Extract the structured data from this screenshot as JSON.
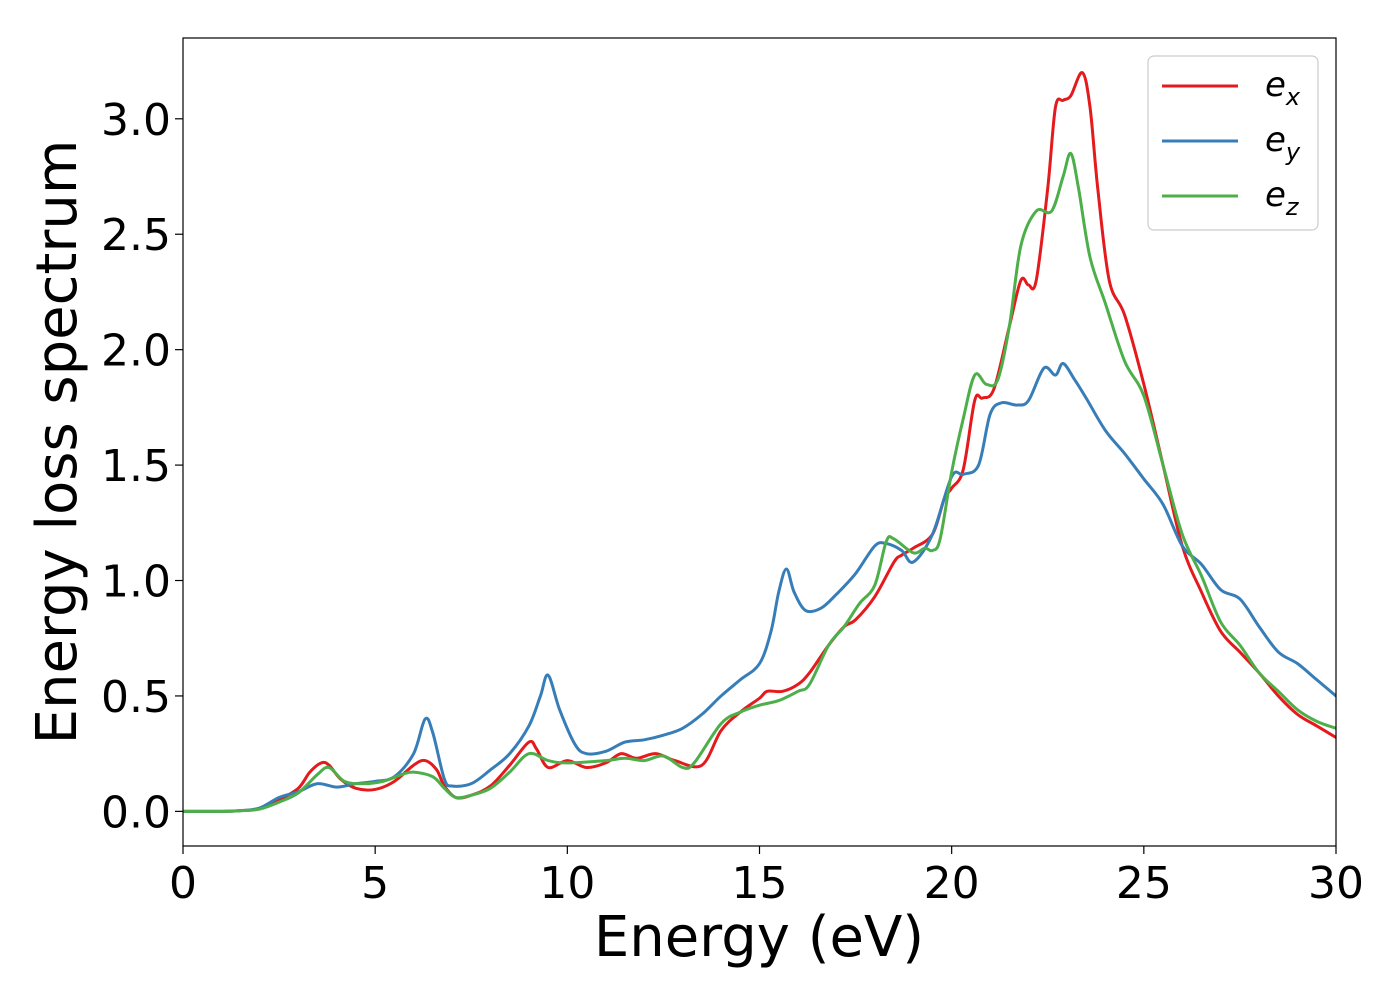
{
  "chart_data": {
    "type": "line",
    "xlabel": "Energy (eV)",
    "ylabel": "Energy loss spectrum",
    "xlim": [
      0,
      30
    ],
    "ylim": [
      -0.15,
      3.35
    ],
    "xticks": [
      0,
      5,
      10,
      15,
      20,
      25,
      30
    ],
    "yticks": [
      0.0,
      0.5,
      1.0,
      1.5,
      2.0,
      2.5,
      3.0
    ],
    "xtick_labels": [
      "0",
      "5",
      "10",
      "15",
      "20",
      "25",
      "30"
    ],
    "ytick_labels": [
      "0.0",
      "0.5",
      "1.0",
      "1.5",
      "2.0",
      "2.5",
      "3.0"
    ],
    "grid": false,
    "legend_position": "top-right",
    "series": [
      {
        "name": "e",
        "sub": "x",
        "color": "#e41a1c",
        "points": [
          [
            0,
            0
          ],
          [
            1,
            0
          ],
          [
            1.5,
            0.003
          ],
          [
            2,
            0.012
          ],
          [
            2.5,
            0.05
          ],
          [
            3,
            0.1
          ],
          [
            3.3,
            0.17
          ],
          [
            3.6,
            0.21
          ],
          [
            3.8,
            0.2
          ],
          [
            4.1,
            0.14
          ],
          [
            4.5,
            0.1
          ],
          [
            5,
            0.095
          ],
          [
            5.5,
            0.13
          ],
          [
            6,
            0.2
          ],
          [
            6.3,
            0.22
          ],
          [
            6.6,
            0.18
          ],
          [
            6.8,
            0.11
          ],
          [
            7.1,
            0.06
          ],
          [
            7.5,
            0.07
          ],
          [
            8,
            0.11
          ],
          [
            8.5,
            0.2
          ],
          [
            9,
            0.3
          ],
          [
            9.2,
            0.27
          ],
          [
            9.5,
            0.19
          ],
          [
            10,
            0.22
          ],
          [
            10.5,
            0.19
          ],
          [
            11,
            0.21
          ],
          [
            11.4,
            0.25
          ],
          [
            11.8,
            0.23
          ],
          [
            12.3,
            0.25
          ],
          [
            12.8,
            0.22
          ],
          [
            13.5,
            0.2
          ],
          [
            14,
            0.35
          ],
          [
            14.5,
            0.43
          ],
          [
            15,
            0.49
          ],
          [
            15.2,
            0.52
          ],
          [
            15.6,
            0.52
          ],
          [
            16,
            0.55
          ],
          [
            16.3,
            0.6
          ],
          [
            16.8,
            0.72
          ],
          [
            17.2,
            0.8
          ],
          [
            17.5,
            0.83
          ],
          [
            18,
            0.93
          ],
          [
            18.5,
            1.08
          ],
          [
            18.7,
            1.11
          ],
          [
            19,
            1.14
          ],
          [
            19.5,
            1.2
          ],
          [
            19.8,
            1.35
          ],
          [
            20,
            1.4
          ],
          [
            20.3,
            1.48
          ],
          [
            20.6,
            1.78
          ],
          [
            20.8,
            1.79
          ],
          [
            21.1,
            1.83
          ],
          [
            21.5,
            2.1
          ],
          [
            21.8,
            2.3
          ],
          [
            22,
            2.28
          ],
          [
            22.2,
            2.3
          ],
          [
            22.5,
            2.7
          ],
          [
            22.7,
            3.05
          ],
          [
            22.9,
            3.08
          ],
          [
            23.1,
            3.1
          ],
          [
            23.4,
            3.2
          ],
          [
            23.6,
            3.05
          ],
          [
            23.8,
            2.7
          ],
          [
            24.1,
            2.3
          ],
          [
            24.5,
            2.15
          ],
          [
            25,
            1.85
          ],
          [
            25.5,
            1.5
          ],
          [
            26,
            1.15
          ],
          [
            26.5,
            0.95
          ],
          [
            27,
            0.78
          ],
          [
            27.5,
            0.69
          ],
          [
            28,
            0.6
          ],
          [
            28.5,
            0.5
          ],
          [
            29,
            0.42
          ],
          [
            29.5,
            0.37
          ],
          [
            30,
            0.32
          ]
        ]
      },
      {
        "name": "e",
        "sub": "y",
        "color": "#377eb8",
        "points": [
          [
            0,
            0
          ],
          [
            1,
            0
          ],
          [
            1.5,
            0.003
          ],
          [
            2,
            0.015
          ],
          [
            2.5,
            0.06
          ],
          [
            3,
            0.085
          ],
          [
            3.5,
            0.12
          ],
          [
            4,
            0.105
          ],
          [
            4.5,
            0.12
          ],
          [
            5,
            0.13
          ],
          [
            5.5,
            0.15
          ],
          [
            6,
            0.25
          ],
          [
            6.3,
            0.4
          ],
          [
            6.5,
            0.34
          ],
          [
            6.8,
            0.14
          ],
          [
            7,
            0.11
          ],
          [
            7.5,
            0.12
          ],
          [
            8,
            0.18
          ],
          [
            8.5,
            0.25
          ],
          [
            9,
            0.37
          ],
          [
            9.3,
            0.5
          ],
          [
            9.5,
            0.59
          ],
          [
            9.8,
            0.44
          ],
          [
            10.2,
            0.29
          ],
          [
            10.5,
            0.25
          ],
          [
            11,
            0.26
          ],
          [
            11.5,
            0.3
          ],
          [
            12,
            0.31
          ],
          [
            12.5,
            0.33
          ],
          [
            13,
            0.36
          ],
          [
            13.5,
            0.42
          ],
          [
            14,
            0.5
          ],
          [
            14.5,
            0.57
          ],
          [
            15,
            0.64
          ],
          [
            15.3,
            0.78
          ],
          [
            15.5,
            0.95
          ],
          [
            15.7,
            1.05
          ],
          [
            15.9,
            0.95
          ],
          [
            16.2,
            0.87
          ],
          [
            16.6,
            0.88
          ],
          [
            17,
            0.94
          ],
          [
            17.5,
            1.03
          ],
          [
            18,
            1.15
          ],
          [
            18.3,
            1.16
          ],
          [
            18.7,
            1.13
          ],
          [
            19,
            1.08
          ],
          [
            19.5,
            1.2
          ],
          [
            20,
            1.45
          ],
          [
            20.3,
            1.46
          ],
          [
            20.7,
            1.5
          ],
          [
            21,
            1.72
          ],
          [
            21.3,
            1.77
          ],
          [
            21.7,
            1.76
          ],
          [
            22,
            1.78
          ],
          [
            22.4,
            1.92
          ],
          [
            22.7,
            1.89
          ],
          [
            22.9,
            1.94
          ],
          [
            23.2,
            1.87
          ],
          [
            23.5,
            1.79
          ],
          [
            24,
            1.65
          ],
          [
            24.5,
            1.55
          ],
          [
            25,
            1.44
          ],
          [
            25.5,
            1.33
          ],
          [
            26,
            1.15
          ],
          [
            26.5,
            1.07
          ],
          [
            27,
            0.96
          ],
          [
            27.5,
            0.92
          ],
          [
            28,
            0.8
          ],
          [
            28.5,
            0.69
          ],
          [
            29,
            0.64
          ],
          [
            29.5,
            0.57
          ],
          [
            30,
            0.5
          ]
        ]
      },
      {
        "name": "e",
        "sub": "z",
        "color": "#4daf4a",
        "points": [
          [
            0,
            0
          ],
          [
            1,
            0
          ],
          [
            1.5,
            0.003
          ],
          [
            2,
            0.01
          ],
          [
            2.5,
            0.04
          ],
          [
            3,
            0.08
          ],
          [
            3.5,
            0.16
          ],
          [
            3.8,
            0.19
          ],
          [
            4.2,
            0.13
          ],
          [
            4.7,
            0.12
          ],
          [
            5.2,
            0.13
          ],
          [
            5.7,
            0.16
          ],
          [
            6,
            0.17
          ],
          [
            6.5,
            0.15
          ],
          [
            6.8,
            0.1
          ],
          [
            7.1,
            0.06
          ],
          [
            7.5,
            0.07
          ],
          [
            8,
            0.1
          ],
          [
            8.5,
            0.17
          ],
          [
            9,
            0.25
          ],
          [
            9.5,
            0.22
          ],
          [
            10,
            0.21
          ],
          [
            11,
            0.22
          ],
          [
            11.5,
            0.23
          ],
          [
            12,
            0.22
          ],
          [
            12.5,
            0.24
          ],
          [
            13,
            0.19
          ],
          [
            13.3,
            0.21
          ],
          [
            14,
            0.38
          ],
          [
            14.5,
            0.43
          ],
          [
            15,
            0.46
          ],
          [
            15.5,
            0.48
          ],
          [
            16,
            0.52
          ],
          [
            16.3,
            0.55
          ],
          [
            16.8,
            0.72
          ],
          [
            17.2,
            0.8
          ],
          [
            17.6,
            0.9
          ],
          [
            18,
            0.98
          ],
          [
            18.3,
            1.17
          ],
          [
            18.5,
            1.18
          ],
          [
            19,
            1.12
          ],
          [
            19.3,
            1.14
          ],
          [
            19.5,
            1.13
          ],
          [
            19.7,
            1.18
          ],
          [
            20,
            1.47
          ],
          [
            20.3,
            1.7
          ],
          [
            20.6,
            1.89
          ],
          [
            20.9,
            1.85
          ],
          [
            21.2,
            1.87
          ],
          [
            21.5,
            2.1
          ],
          [
            21.8,
            2.45
          ],
          [
            22.2,
            2.6
          ],
          [
            22.6,
            2.6
          ],
          [
            22.9,
            2.75
          ],
          [
            23.1,
            2.85
          ],
          [
            23.3,
            2.7
          ],
          [
            23.6,
            2.4
          ],
          [
            24,
            2.2
          ],
          [
            24.5,
            1.95
          ],
          [
            25,
            1.8
          ],
          [
            25.5,
            1.5
          ],
          [
            26,
            1.2
          ],
          [
            26.5,
            1.02
          ],
          [
            27,
            0.82
          ],
          [
            27.5,
            0.72
          ],
          [
            28,
            0.6
          ],
          [
            28.5,
            0.52
          ],
          [
            29,
            0.44
          ],
          [
            29.5,
            0.39
          ],
          [
            30,
            0.36
          ]
        ]
      }
    ]
  }
}
